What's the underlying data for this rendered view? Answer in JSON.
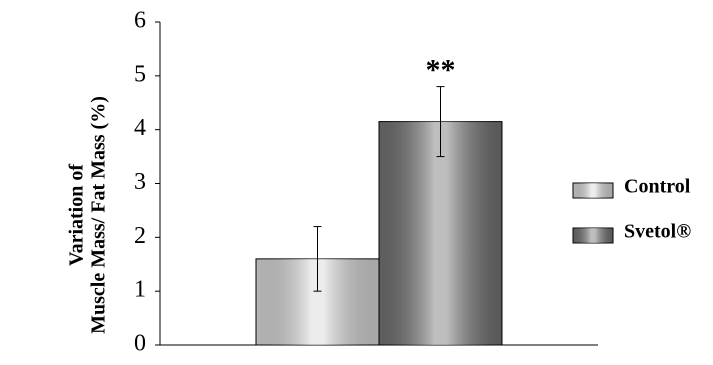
{
  "chart_data": {
    "type": "bar",
    "ylabel": [
      "Variation of",
      "Muscle Mass/ Fat Mass (%)"
    ],
    "categories": [
      null
    ],
    "series": [
      {
        "name": "Control",
        "color": "#d4d4d4",
        "values": [
          1.6
        ],
        "errors": [
          0.6
        ]
      },
      {
        "name": "Svetol®",
        "color": "#6e6e6e",
        "values": [
          4.15
        ],
        "errors": [
          0.65
        ]
      }
    ],
    "annotations": [
      {
        "text": "**",
        "series": 1,
        "category": 0
      }
    ],
    "ylim": [
      0,
      6
    ],
    "yticks": [
      0,
      1,
      2,
      3,
      4,
      5,
      6
    ],
    "legend": "right",
    "grid": false
  }
}
